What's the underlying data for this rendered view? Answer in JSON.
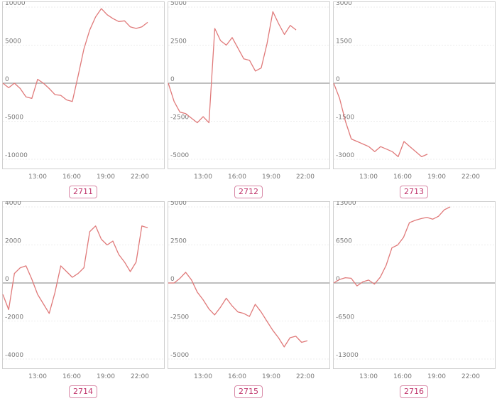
{
  "colors": {
    "line": "#e07a7a",
    "zero": "#999999",
    "grid": "#ececec",
    "frame": "#cfcfcf",
    "badge": "#c0336b",
    "tick": "#777777"
  },
  "chart_data": [
    {
      "type": "line",
      "label": "2711",
      "x_ticks": [
        "13:00",
        "16:00",
        "19:00",
        "22:00"
      ],
      "y_ticks": [
        "10000",
        "5000",
        "0",
        "-5000",
        "-10000"
      ],
      "ylim": [
        -10000,
        10000
      ],
      "values": [
        0,
        -600,
        0,
        -700,
        -1800,
        -2000,
        500,
        0,
        -700,
        -1500,
        -1600,
        -2200,
        -2400,
        1000,
        4500,
        7000,
        8700,
        9800,
        9000,
        8500,
        8100,
        8200,
        7400,
        7200,
        7400,
        8000
      ]
    },
    {
      "type": "line",
      "label": "2712",
      "x_ticks": [
        "13:00",
        "16:00",
        "19:00",
        "22:00"
      ],
      "y_ticks": [
        "5000",
        "2500",
        "0",
        "-2500",
        "-5000"
      ],
      "ylim": [
        -5000,
        5000
      ],
      "values": [
        0,
        -1200,
        -1900,
        -2000,
        -2300,
        -2600,
        -2200,
        -2600,
        3600,
        2800,
        2500,
        3000,
        2300,
        1600,
        1500,
        800,
        1000,
        2600,
        4700,
        3900,
        3200,
        3800,
        3500
      ]
    },
    {
      "type": "line",
      "label": "2713",
      "x_ticks": [
        "13:00",
        "16:00",
        "19:00",
        "22:00"
      ],
      "y_ticks": [
        "3000",
        "1500",
        "0",
        "-1500",
        "-3000"
      ],
      "ylim": [
        -3000,
        3000
      ],
      "values": [
        0,
        -600,
        -1500,
        -2200,
        -2300,
        -2400,
        -2500,
        -2700,
        -2500,
        -2600,
        -2700,
        -2900,
        -2300,
        -2500,
        -2700,
        -2900,
        -2800
      ]
    },
    {
      "type": "line",
      "label": "2714",
      "x_ticks": [
        "13:00",
        "16:00",
        "19:00",
        "22:00"
      ],
      "y_ticks": [
        "4000",
        "2000",
        "0",
        "-2000",
        "-4000"
      ],
      "ylim": [
        -4000,
        4000
      ],
      "values": [
        -600,
        -1400,
        500,
        800,
        900,
        200,
        -600,
        -1100,
        -1600,
        -500,
        900,
        600,
        300,
        500,
        800,
        2700,
        3000,
        2300,
        2000,
        2200,
        1500,
        1100,
        600,
        1100,
        3000,
        2900
      ]
    },
    {
      "type": "line",
      "label": "2715",
      "x_ticks": [
        "13:00",
        "16:00",
        "19:00",
        "22:00"
      ],
      "y_ticks": [
        "5000",
        "2500",
        "0",
        "-2500",
        "-5000"
      ],
      "ylim": [
        -5000,
        5000
      ],
      "values": [
        0,
        0,
        300,
        700,
        200,
        -600,
        -1100,
        -1700,
        -2100,
        -1600,
        -1000,
        -1500,
        -1900,
        -2000,
        -2200,
        -1400,
        -1900,
        -2500,
        -3100,
        -3600,
        -4200,
        -3600,
        -3500,
        -3900,
        -3800
      ]
    },
    {
      "type": "line",
      "label": "2716",
      "x_ticks": [
        "13:00",
        "16:00",
        "19:00",
        "22:00"
      ],
      "y_ticks": [
        "13000",
        "6500",
        "0",
        "-6500",
        "-13000"
      ],
      "ylim": [
        -13000,
        13000
      ],
      "values": [
        0,
        600,
        900,
        800,
        -500,
        200,
        500,
        -200,
        1000,
        3000,
        6000,
        6500,
        7800,
        10300,
        10700,
        11000,
        11200,
        10900,
        11400,
        12500,
        13000
      ]
    }
  ]
}
